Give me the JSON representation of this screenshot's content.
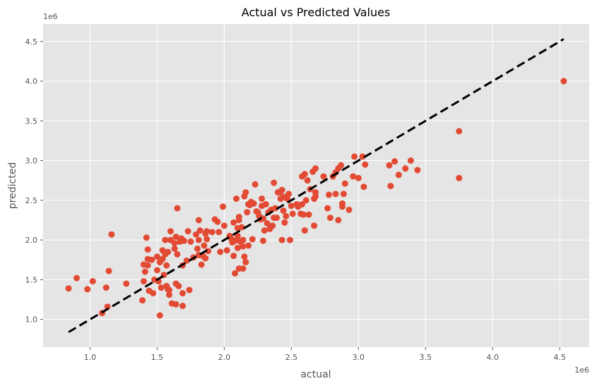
{
  "chart_data": {
    "type": "scatter",
    "title": "Actual vs Predicted Values",
    "xlabel": "actual",
    "ylabel": "predicted",
    "x_offset_label": "1e6",
    "y_offset_label": "1e6",
    "xlim": [
      0.65,
      4.72
    ],
    "ylim": [
      0.65,
      4.72
    ],
    "x_ticks": [
      1.0,
      1.5,
      2.0,
      2.5,
      3.0,
      3.5,
      4.0,
      4.5
    ],
    "y_ticks": [
      1.0,
      1.5,
      2.0,
      2.5,
      3.0,
      3.5,
      4.0,
      4.5
    ],
    "x_tick_labels": [
      "1.0",
      "1.5",
      "2.0",
      "2.5",
      "3.0",
      "3.5",
      "4.0",
      "4.5"
    ],
    "y_tick_labels": [
      "1.0",
      "1.5",
      "2.0",
      "2.5",
      "3.0",
      "3.5",
      "4.0",
      "4.5"
    ],
    "grid": true,
    "reference_line": {
      "x": [
        0.84,
        4.53
      ],
      "y": [
        0.84,
        4.53
      ],
      "style": "dashed",
      "color": "#000000"
    },
    "point_color": "#E24A33",
    "background_color": "#E5E5E5",
    "points": [
      [
        0.84,
        1.39
      ],
      [
        0.9,
        1.52
      ],
      [
        0.98,
        1.38
      ],
      [
        1.02,
        1.48
      ],
      [
        1.09,
        1.08
      ],
      [
        1.12,
        1.4
      ],
      [
        1.13,
        1.16
      ],
      [
        1.14,
        1.61
      ],
      [
        1.16,
        2.07
      ],
      [
        1.27,
        1.45
      ],
      [
        1.39,
        1.24
      ],
      [
        1.4,
        1.48
      ],
      [
        1.4,
        1.69
      ],
      [
        1.41,
        1.6
      ],
      [
        1.42,
        2.03
      ],
      [
        1.43,
        1.88
      ],
      [
        1.43,
        1.76
      ],
      [
        1.43,
        1.68
      ],
      [
        1.44,
        1.36
      ],
      [
        1.46,
        1.75
      ],
      [
        1.47,
        1.33
      ],
      [
        1.48,
        1.5
      ],
      [
        1.5,
        1.79
      ],
      [
        1.5,
        1.62
      ],
      [
        1.51,
        1.48
      ],
      [
        1.52,
        1.72
      ],
      [
        1.52,
        1.05
      ],
      [
        1.53,
        1.4
      ],
      [
        1.54,
        1.87
      ],
      [
        1.54,
        1.76
      ],
      [
        1.55,
        1.56
      ],
      [
        1.56,
        2.0
      ],
      [
        1.56,
        1.82
      ],
      [
        1.57,
        1.42
      ],
      [
        1.57,
        1.68
      ],
      [
        1.58,
        1.38
      ],
      [
        1.58,
        1.85
      ],
      [
        1.59,
        1.31
      ],
      [
        1.59,
        1.37
      ],
      [
        1.6,
        2.11
      ],
      [
        1.6,
        2.0
      ],
      [
        1.61,
        1.2
      ],
      [
        1.63,
        1.89
      ],
      [
        1.63,
        1.96
      ],
      [
        1.64,
        1.45
      ],
      [
        1.64,
        1.19
      ],
      [
        1.64,
        2.04
      ],
      [
        1.65,
        2.4
      ],
      [
        1.65,
        1.82
      ],
      [
        1.66,
        1.42
      ],
      [
        1.67,
        1.98
      ],
      [
        1.68,
        2.02
      ],
      [
        1.69,
        1.68
      ],
      [
        1.69,
        1.33
      ],
      [
        1.69,
        1.17
      ],
      [
        1.7,
        1.99
      ],
      [
        1.72,
        1.74
      ],
      [
        1.73,
        2.11
      ],
      [
        1.74,
        1.37
      ],
      [
        1.75,
        1.98
      ],
      [
        1.77,
        1.78
      ],
      [
        1.79,
        2.07
      ],
      [
        1.8,
        1.89
      ],
      [
        1.81,
        2.25
      ],
      [
        1.81,
        2.0
      ],
      [
        1.81,
        1.81
      ],
      [
        1.82,
        2.12
      ],
      [
        1.83,
        1.69
      ],
      [
        1.84,
        1.8
      ],
      [
        1.85,
        1.93
      ],
      [
        1.86,
        1.77
      ],
      [
        1.86,
        2.08
      ],
      [
        1.87,
        2.01
      ],
      [
        1.87,
        2.11
      ],
      [
        1.88,
        1.86
      ],
      [
        1.91,
        2.1
      ],
      [
        1.93,
        2.26
      ],
      [
        1.95,
        2.23
      ],
      [
        1.96,
        2.1
      ],
      [
        1.97,
        1.85
      ],
      [
        1.99,
        2.42
      ],
      [
        2.0,
        2.18
      ],
      [
        2.02,
        1.87
      ],
      [
        2.04,
        2.05
      ],
      [
        2.05,
        2.02
      ],
      [
        2.06,
        1.97
      ],
      [
        2.07,
        1.8
      ],
      [
        2.07,
        2.22
      ],
      [
        2.08,
        1.58
      ],
      [
        2.08,
        1.99
      ],
      [
        2.09,
        2.52
      ],
      [
        2.1,
        2.05
      ],
      [
        2.1,
        1.9
      ],
      [
        2.1,
        2.15
      ],
      [
        2.11,
        2.25
      ],
      [
        2.11,
        2.29
      ],
      [
        2.11,
        1.64
      ],
      [
        2.12,
        1.98
      ],
      [
        2.13,
        2.16
      ],
      [
        2.14,
        1.92
      ],
      [
        2.14,
        1.64
      ],
      [
        2.14,
        2.0
      ],
      [
        2.15,
        1.79
      ],
      [
        2.15,
        2.55
      ],
      [
        2.16,
        2.6
      ],
      [
        2.16,
        1.72
      ],
      [
        2.17,
        2.35
      ],
      [
        2.18,
        1.93
      ],
      [
        2.18,
        2.45
      ],
      [
        2.19,
        2.44
      ],
      [
        2.2,
        2.48
      ],
      [
        2.21,
        2.01
      ],
      [
        2.22,
        2.46
      ],
      [
        2.23,
        2.7
      ],
      [
        2.24,
        2.36
      ],
      [
        2.25,
        2.35
      ],
      [
        2.26,
        2.3
      ],
      [
        2.27,
        2.26
      ],
      [
        2.28,
        2.52
      ],
      [
        2.28,
        2.43
      ],
      [
        2.29,
        2.27
      ],
      [
        2.29,
        1.99
      ],
      [
        2.3,
        2.12
      ],
      [
        2.31,
        2.45
      ],
      [
        2.32,
        2.21
      ],
      [
        2.33,
        2.35
      ],
      [
        2.34,
        2.14
      ],
      [
        2.35,
        2.38
      ],
      [
        2.36,
        2.18
      ],
      [
        2.37,
        2.72
      ],
      [
        2.37,
        2.28
      ],
      [
        2.38,
        2.4
      ],
      [
        2.39,
        2.28
      ],
      [
        2.4,
        2.6
      ],
      [
        2.42,
        2.52
      ],
      [
        2.42,
        2.6
      ],
      [
        2.43,
        2.0
      ],
      [
        2.43,
        2.63
      ],
      [
        2.44,
        2.37
      ],
      [
        2.45,
        2.54
      ],
      [
        2.45,
        2.22
      ],
      [
        2.46,
        2.3
      ],
      [
        2.47,
        2.52
      ],
      [
        2.48,
        2.58
      ],
      [
        2.49,
        2.0
      ],
      [
        2.5,
        2.43
      ],
      [
        2.51,
        2.33
      ],
      [
        2.54,
        2.45
      ],
      [
        2.55,
        2.42
      ],
      [
        2.57,
        2.33
      ],
      [
        2.58,
        2.45
      ],
      [
        2.58,
        2.8
      ],
      [
        2.59,
        2.32
      ],
      [
        2.6,
        2.12
      ],
      [
        2.6,
        2.83
      ],
      [
        2.61,
        2.5
      ],
      [
        2.62,
        2.75
      ],
      [
        2.63,
        2.32
      ],
      [
        2.64,
        2.64
      ],
      [
        2.66,
        2.86
      ],
      [
        2.67,
        2.52
      ],
      [
        2.67,
        2.18
      ],
      [
        2.68,
        2.6
      ],
      [
        2.68,
        2.55
      ],
      [
        2.68,
        2.9
      ],
      [
        2.74,
        2.8
      ],
      [
        2.77,
        2.4
      ],
      [
        2.78,
        2.57
      ],
      [
        2.79,
        2.28
      ],
      [
        2.81,
        2.8
      ],
      [
        2.83,
        2.58
      ],
      [
        2.83,
        2.85
      ],
      [
        2.85,
        2.25
      ],
      [
        2.85,
        2.9
      ],
      [
        2.87,
        2.94
      ],
      [
        2.88,
        2.46
      ],
      [
        2.88,
        2.42
      ],
      [
        2.89,
        2.58
      ],
      [
        2.9,
        2.71
      ],
      [
        2.93,
        2.38
      ],
      [
        2.96,
        2.8
      ],
      [
        2.97,
        3.05
      ],
      [
        3.0,
        2.78
      ],
      [
        3.03,
        3.05
      ],
      [
        3.04,
        2.67
      ],
      [
        3.05,
        2.95
      ],
      [
        3.23,
        2.94
      ],
      [
        3.24,
        2.68
      ],
      [
        3.27,
        2.99
      ],
      [
        3.3,
        2.82
      ],
      [
        3.35,
        2.9
      ],
      [
        3.39,
        3.0
      ],
      [
        3.44,
        2.88
      ],
      [
        3.75,
        3.37
      ],
      [
        3.75,
        2.78
      ],
      [
        4.53,
        4.0
      ]
    ]
  }
}
